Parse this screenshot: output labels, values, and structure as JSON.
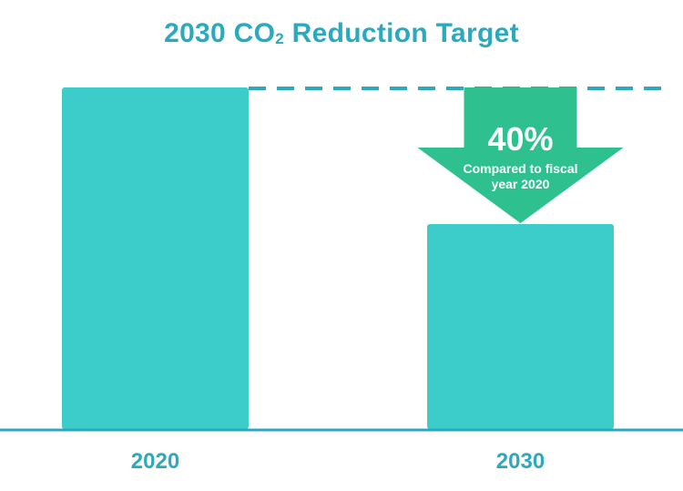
{
  "chart_data": {
    "type": "bar",
    "title_main": "2030 CO",
    "title_subscript": "2",
    "title_end": " Reduction Target",
    "categories": [
      "2020",
      "2030"
    ],
    "values": [
      100,
      60
    ],
    "ylim": [
      0,
      100
    ],
    "grid": false,
    "annotation": {
      "percent": "40%",
      "line1": "Compared to fiscal",
      "line2": "year 2020"
    },
    "colors": {
      "bar": "#3cccca",
      "arrow": "#2ec08f",
      "axis": "#2da9bd",
      "dash": "#2da9bd",
      "text": "#2da9bd"
    }
  }
}
